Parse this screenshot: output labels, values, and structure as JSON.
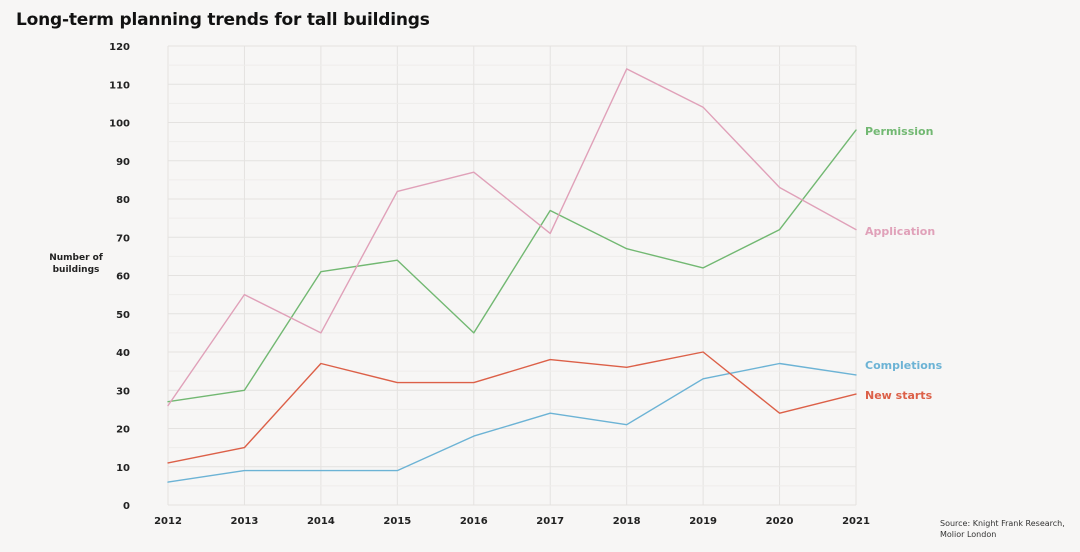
{
  "chart_data": {
    "type": "line",
    "title": "Long-term planning trends for tall buildings",
    "xlabel": "",
    "ylabel": "Number of buildings",
    "x": [
      2012,
      2013,
      2014,
      2015,
      2016,
      2017,
      2018,
      2019,
      2020,
      2021
    ],
    "ylim": [
      0,
      120
    ],
    "y_ticks": [
      0,
      10,
      20,
      30,
      40,
      50,
      60,
      70,
      80,
      90,
      100,
      110,
      120
    ],
    "grid": true,
    "legend": "inline-right",
    "series": [
      {
        "name": "Permission",
        "color": "#72b872",
        "values": [
          27,
          30,
          61,
          64,
          45,
          77,
          67,
          62,
          72,
          98
        ]
      },
      {
        "name": "Application",
        "color": "#e0a1b9",
        "values": [
          26,
          55,
          45,
          82,
          87,
          71,
          114,
          104,
          83,
          72
        ]
      },
      {
        "name": "Completions",
        "color": "#6cb3d5",
        "values": [
          6,
          9,
          9,
          9,
          18,
          24,
          21,
          33,
          37,
          34
        ]
      },
      {
        "name": "New starts",
        "color": "#dc6048",
        "values": [
          11,
          15,
          37,
          32,
          32,
          38,
          36,
          40,
          24,
          29
        ]
      }
    ],
    "source": "Source: Knight Frank Research, Molior London"
  }
}
